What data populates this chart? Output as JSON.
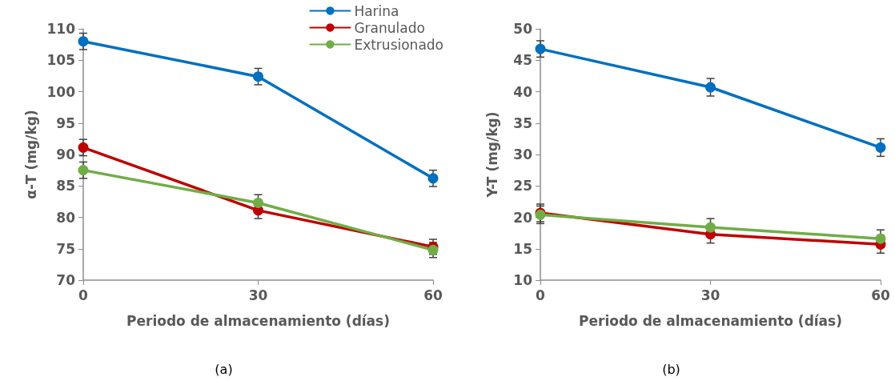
{
  "chart_data": [
    {
      "type": "line",
      "title": "(a)",
      "xlabel": "Periodo de almacenamiento (días)",
      "ylabel": "α-T (mg/kg)",
      "x": [
        0,
        30,
        60
      ],
      "xlim": [
        0,
        60
      ],
      "xticks": [
        0,
        30,
        60
      ],
      "ylim": [
        70,
        110
      ],
      "yticks": [
        70,
        75,
        80,
        85,
        90,
        95,
        100,
        105,
        110
      ],
      "grid": false,
      "legend": "top right",
      "marker": "circle",
      "line_style": "solid",
      "series": [
        {
          "name": "Harina",
          "color": "#0070c0",
          "values": [
            108,
            102.4,
            86.2
          ],
          "errors": [
            1.3,
            1.3,
            1.3
          ]
        },
        {
          "name": "Granulado",
          "color": "#c00000",
          "values": [
            91.1,
            81.1,
            75.3
          ],
          "errors": [
            1.3,
            1.3,
            1.2
          ]
        },
        {
          "name": "Extrusionado",
          "color": "#70ad47",
          "values": [
            87.5,
            82.3,
            74.8
          ],
          "errors": [
            1.3,
            1.3,
            1.2
          ]
        }
      ]
    },
    {
      "type": "line",
      "title": "(b)",
      "xlabel": "Periodo de almacenamiento (días)",
      "ylabel": "Y-T (mg/kg)",
      "x": [
        0,
        30,
        60
      ],
      "xlim": [
        0,
        60
      ],
      "xticks": [
        0,
        30,
        60
      ],
      "ylim": [
        10,
        50
      ],
      "yticks": [
        10,
        15,
        20,
        25,
        30,
        35,
        40,
        45,
        50
      ],
      "grid": false,
      "legend": false,
      "marker": "circle",
      "line_style": "solid",
      "series": [
        {
          "color": "#0070c0",
          "values": [
            46.8,
            40.7,
            31.1
          ],
          "errors": [
            1.3,
            1.4,
            1.4
          ]
        },
        {
          "color": "#c00000",
          "values": [
            20.7,
            17.3,
            15.7
          ],
          "errors": [
            1.4,
            1.4,
            1.4
          ]
        },
        {
          "color": "#70ad47",
          "values": [
            20.4,
            18.4,
            16.6
          ],
          "errors": [
            1.4,
            1.4,
            1.4
          ]
        }
      ]
    }
  ]
}
